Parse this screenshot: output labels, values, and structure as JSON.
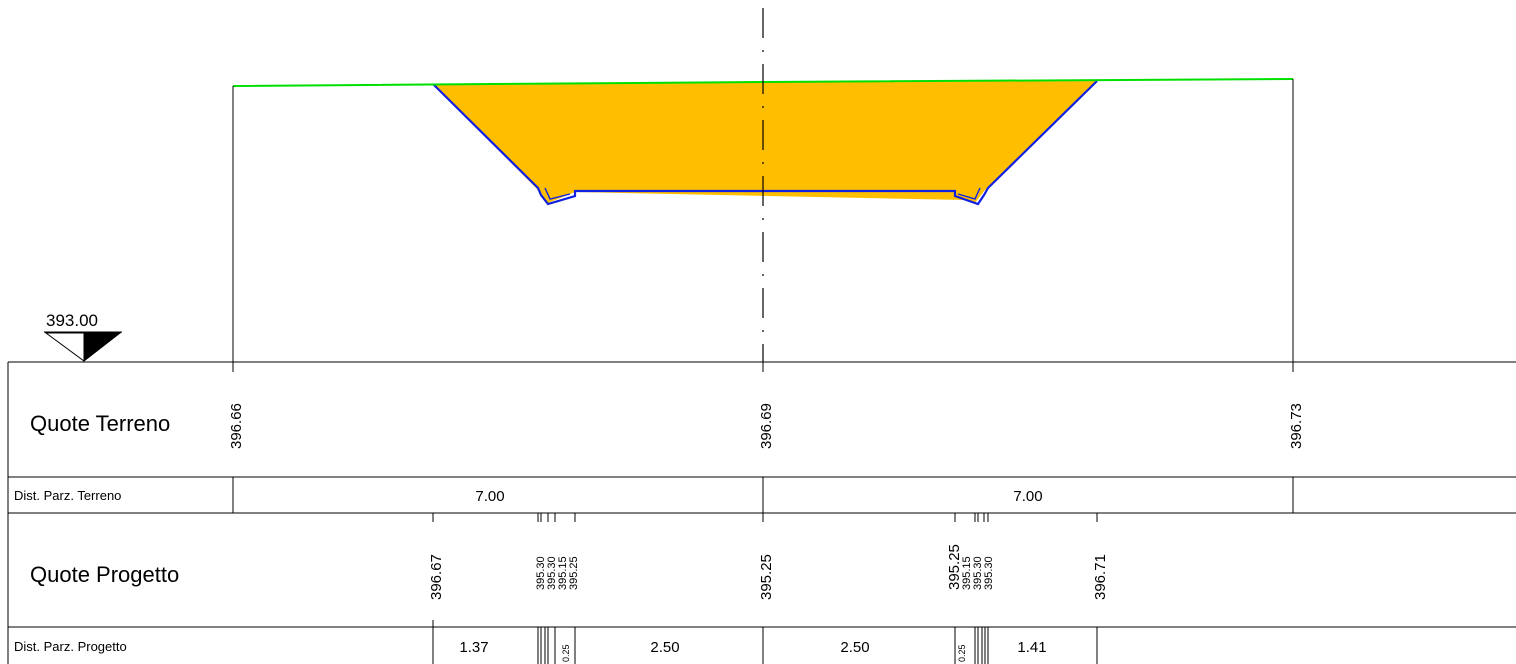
{
  "datum": {
    "label": "393.00"
  },
  "colors": {
    "ground_line": "#00e000",
    "cut_fill": "#ffbf00",
    "project_line": "#1020e0",
    "lines": "#000000",
    "background": "#ffffff"
  },
  "table": {
    "ground_elevations": {
      "label": "Quote Terreno",
      "values": [
        "396.66",
        "396.69",
        "396.73"
      ]
    },
    "ground_distances": {
      "label": "Dist. Parz. Terreno",
      "values": [
        "7.00",
        "7.00"
      ]
    },
    "project_elevations": {
      "label": "Quote Progetto",
      "main_values": [
        "396.67",
        "395.25",
        "396.71"
      ],
      "left_cluster": [
        "395.30",
        "395.30",
        "395.15",
        "395.25"
      ],
      "right_cluster": [
        "395.25",
        "395.15",
        "395.30",
        "395.30"
      ]
    },
    "project_distances": {
      "label": "Dist. Parz. Progetto",
      "values": [
        "1.37",
        "2.50",
        "2.50",
        "1.41"
      ],
      "small_values": [
        "0.25",
        "0.25"
      ]
    }
  }
}
